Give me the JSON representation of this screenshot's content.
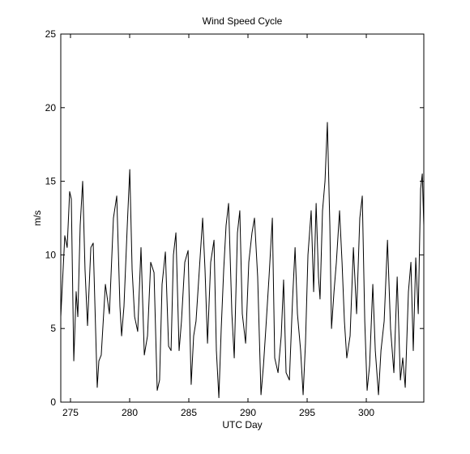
{
  "chart_data": {
    "type": "line",
    "title": "Wind Speed Cycle",
    "x_label": "UTC Day",
    "y_label": "m/s",
    "xlim": [
      274.18,
      304.86
    ],
    "xticks": [
      275,
      280,
      285,
      290,
      295,
      300
    ],
    "ylim": [
      0,
      25
    ],
    "yticks": [
      0,
      5,
      10,
      15,
      20,
      25
    ],
    "series": [
      {
        "color": "#000000",
        "x": [
          274.18,
          274.52,
          274.72,
          274.93,
          275.07,
          275.28,
          275.48,
          275.62,
          275.82,
          276.03,
          276.23,
          276.44,
          276.72,
          276.92,
          277.26,
          277.4,
          277.6,
          277.95,
          278.29,
          278.63,
          278.91,
          279.18,
          279.32,
          279.52,
          279.8,
          280.01,
          280.21,
          280.42,
          280.68,
          280.96,
          281.24,
          281.51,
          281.78,
          282.06,
          282.33,
          282.53,
          282.74,
          283.02,
          283.29,
          283.5,
          283.7,
          283.91,
          284.18,
          284.38,
          284.66,
          284.94,
          285.2,
          285.41,
          285.61,
          285.89,
          286.17,
          286.37,
          286.58,
          286.85,
          287.13,
          287.33,
          287.54,
          287.74,
          287.95,
          288.15,
          288.36,
          288.64,
          288.84,
          289.11,
          289.31,
          289.52,
          289.8,
          290.07,
          290.34,
          290.55,
          290.82,
          291.1,
          291.31,
          291.51,
          291.78,
          292.06,
          292.26,
          292.54,
          292.81,
          293.01,
          293.22,
          293.5,
          293.77,
          293.98,
          294.18,
          294.45,
          294.66,
          294.86,
          295.07,
          295.34,
          295.55,
          295.76,
          295.96,
          296.09,
          296.3,
          296.51,
          296.71,
          296.92,
          297.06,
          297.27,
          297.47,
          297.74,
          297.95,
          298.15,
          298.35,
          298.63,
          298.91,
          299.18,
          299.45,
          299.66,
          299.87,
          300.07,
          300.28,
          300.55,
          300.76,
          301.03,
          301.24,
          301.51,
          301.79,
          302.05,
          302.33,
          302.61,
          302.88,
          303.08,
          303.29,
          303.56,
          303.77,
          303.97,
          304.18,
          304.39,
          304.59,
          304.73,
          304.86
        ],
        "values": [
          5.8,
          11.3,
          10.5,
          14.3,
          13.8,
          2.8,
          7.5,
          5.8,
          12,
          15,
          9,
          5.2,
          10.5,
          10.8,
          1,
          2.8,
          3.2,
          8,
          6,
          12.5,
          14,
          6.5,
          4.5,
          6.5,
          12,
          15.8,
          9,
          5.8,
          4.8,
          10.5,
          3.2,
          4.5,
          9.5,
          8.8,
          0.8,
          1.5,
          8,
          10.2,
          3.8,
          3.5,
          10,
          11.5,
          3.5,
          5.5,
          9.5,
          10.3,
          1.2,
          4.5,
          5.5,
          9,
          12.5,
          9,
          4,
          9.5,
          11,
          3.5,
          0.3,
          5,
          9,
          12,
          13.5,
          6,
          3,
          11.5,
          13,
          6,
          4,
          9.5,
          11.5,
          12.5,
          8.5,
          0.5,
          2.5,
          5,
          8.5,
          12.5,
          3,
          2,
          4.5,
          8.3,
          2,
          1.5,
          7,
          10.5,
          6,
          3.5,
          0.5,
          4,
          10,
          13,
          7.5,
          13.5,
          8.5,
          7,
          13,
          15,
          19,
          12,
          5,
          7.5,
          9.5,
          13,
          9.5,
          5.5,
          3,
          4.5,
          10.5,
          6,
          12.5,
          14,
          5.5,
          0.8,
          2.5,
          8,
          3.5,
          0.5,
          3.5,
          5.5,
          11,
          5,
          2,
          8.5,
          1.5,
          3,
          1,
          7.5,
          9.5,
          3.5,
          9.8,
          6,
          14.5,
          15.5,
          12
        ]
      }
    ]
  }
}
